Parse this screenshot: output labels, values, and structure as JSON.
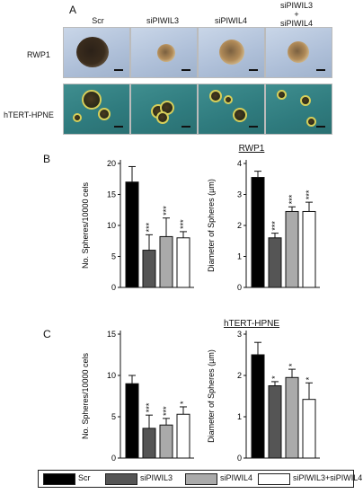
{
  "panel_labels": {
    "a": "A",
    "b": "B",
    "c": "C"
  },
  "columns": [
    "Scr",
    "siPIWIL3",
    "siPIWIL4",
    "siPIWIL3\n+\nsiPIWIL4"
  ],
  "rows": [
    "RWP1",
    "hTERT-HPNE"
  ],
  "colors": {
    "scr": "#000000",
    "siPIWIL3": "#555555",
    "siPIWIL4": "#aaaaaa",
    "combo": "#ffffff"
  },
  "legend": [
    "Scr",
    "siPIWIL3",
    "siPIWIL4",
    "siPIWIL3+siPIWIL4"
  ],
  "chart_data": [
    {
      "type": "bar",
      "group": "RWP1",
      "title": "RWP1",
      "ylabel": "No. Spheres/10000 cels",
      "categories": [
        "Scr",
        "siPIWIL3",
        "siPIWIL4",
        "siPIWIL3+siPIWIL4"
      ],
      "values": [
        17,
        6,
        8.2,
        8
      ],
      "errors": [
        2.5,
        2.5,
        3,
        1
      ],
      "significance": [
        "",
        "***",
        "***",
        "***"
      ],
      "ylim": [
        0,
        20
      ],
      "yticks": [
        0,
        5,
        10,
        15,
        20
      ]
    },
    {
      "type": "bar",
      "group": "RWP1",
      "title": "",
      "ylabel": "Diameter of Spheres (µm)",
      "categories": [
        "Scr",
        "siPIWIL3",
        "siPIWIL4",
        "siPIWIL3+siPIWIL4"
      ],
      "values": [
        3.55,
        1.6,
        2.45,
        2.45
      ],
      "errors": [
        0.2,
        0.15,
        0.15,
        0.3
      ],
      "significance": [
        "",
        "***",
        "***",
        "***"
      ],
      "ylim": [
        0,
        4
      ],
      "yticks": [
        0,
        1,
        2,
        3,
        4
      ]
    },
    {
      "type": "bar",
      "group": "hTERT-HPNE",
      "title": "hTERT-HPNE",
      "ylabel": "No. Spheres/10000 cels",
      "categories": [
        "Scr",
        "siPIWIL3",
        "siPIWIL4",
        "siPIWIL3+siPIWIL4"
      ],
      "values": [
        9,
        3.6,
        4,
        5.3
      ],
      "errors": [
        1,
        1.6,
        0.8,
        0.9
      ],
      "significance": [
        "",
        "***",
        "***",
        "*"
      ],
      "ylim": [
        0,
        15
      ],
      "yticks": [
        0,
        5,
        10,
        15
      ]
    },
    {
      "type": "bar",
      "group": "hTERT-HPNE",
      "title": "",
      "ylabel": "Diameter of Spheres (µm)",
      "categories": [
        "Scr",
        "siPIWIL3",
        "siPIWIL4",
        "siPIWIL3+siPIWIL4"
      ],
      "values": [
        2.5,
        1.75,
        1.95,
        1.42
      ],
      "errors": [
        0.3,
        0.1,
        0.2,
        0.4
      ],
      "significance": [
        "",
        "*",
        "*",
        "*"
      ],
      "ylim": [
        0,
        3
      ],
      "yticks": [
        0,
        1,
        2,
        3
      ]
    }
  ]
}
